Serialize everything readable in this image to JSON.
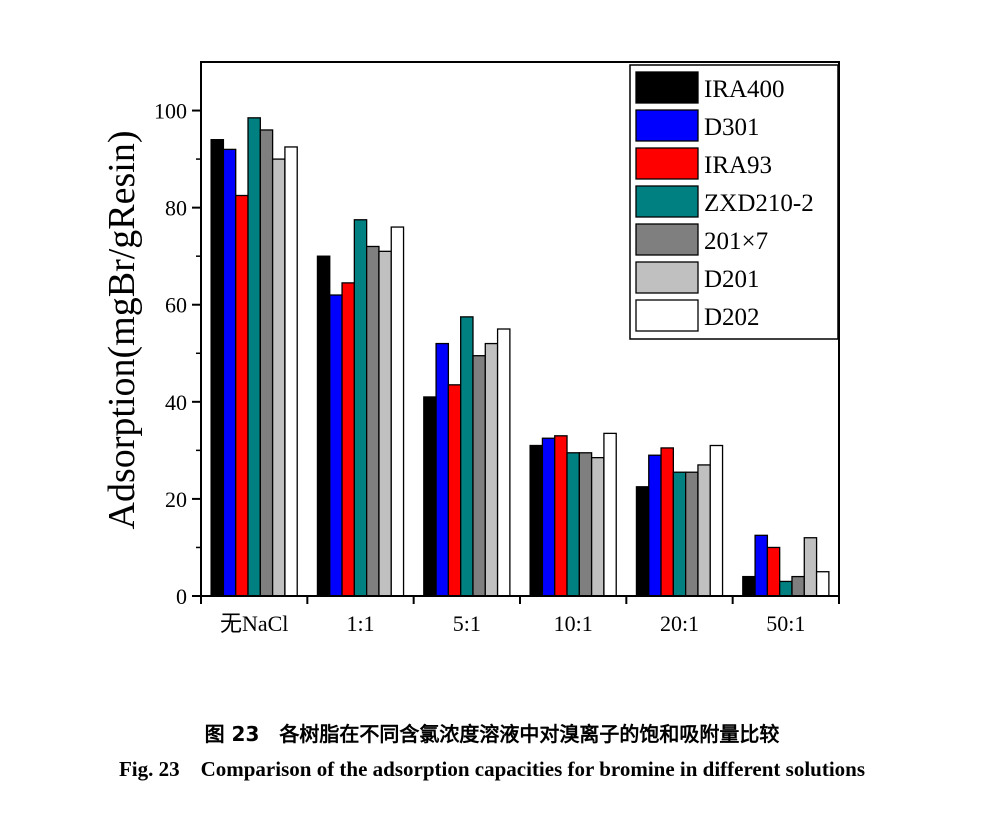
{
  "chart_data": {
    "type": "bar",
    "categories": [
      "无NaCl",
      "1:1",
      "5:1",
      "10:1",
      "20:1",
      "50:1"
    ],
    "ylabel": "Adsorption(mgBr/gResin)",
    "xlabel": "",
    "ylim": [
      0,
      110
    ],
    "yticks": [
      0,
      20,
      40,
      60,
      80,
      100
    ],
    "legend_position": "top-right",
    "grid": false,
    "series": [
      {
        "name": "IRA400",
        "color": "#000000",
        "values": [
          94,
          70,
          41,
          31,
          22.5,
          4
        ]
      },
      {
        "name": "D301",
        "color": "#0000ff",
        "values": [
          92,
          62,
          52,
          32.5,
          29,
          12.5
        ]
      },
      {
        "name": "IRA93",
        "color": "#ff0000",
        "values": [
          82.5,
          64.5,
          43.5,
          33,
          30.5,
          10
        ]
      },
      {
        "name": "ZXD210-2",
        "color": "#008080",
        "values": [
          98.5,
          77.5,
          57.5,
          29.5,
          25.5,
          3
        ]
      },
      {
        "name": "201×7",
        "color": "#7f7f7f",
        "values": [
          96,
          72,
          49.5,
          29.5,
          25.5,
          4
        ]
      },
      {
        "name": "D201",
        "color": "#c0c0c0",
        "values": [
          90,
          71,
          52,
          28.5,
          27,
          12
        ]
      },
      {
        "name": "D202",
        "color": "#ffffff",
        "values": [
          92.5,
          76,
          55,
          33.5,
          31,
          5
        ]
      }
    ]
  },
  "caption": {
    "cn": "图 23　各树脂在不同含氯浓度溶液中对溴离子的饱和吸附量比较",
    "en": "Fig. 23　Comparison of the adsorption capacities for bromine in different solutions"
  }
}
